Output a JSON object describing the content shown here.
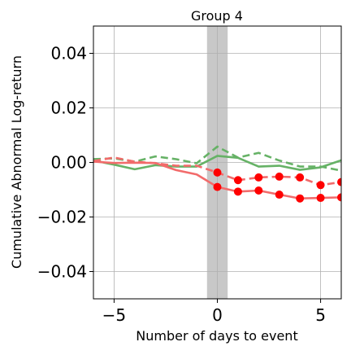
{
  "chart_data": {
    "type": "line",
    "title": "Group 4",
    "xlabel": "Number of days to event",
    "ylabel": "Cumulative Abnormal Log-return",
    "xlim": [
      -6,
      6
    ],
    "ylim": [
      -0.05,
      0.05
    ],
    "x_ticks": [
      -5,
      0,
      5
    ],
    "x_tick_labels": [
      "−5",
      "0",
      "5"
    ],
    "y_ticks": [
      -0.04,
      -0.02,
      0.0,
      0.02,
      0.04
    ],
    "y_tick_labels": [
      "−0.04",
      "−0.02",
      "0.00",
      "0.02",
      "0.04"
    ],
    "grid": true,
    "event_band": {
      "x_from": -0.5,
      "x_to": 0.5,
      "color": "#c8c8c8"
    },
    "series": [
      {
        "color": "#66b266",
        "style": "solid",
        "x": [
          -6,
          -5,
          -4,
          -3,
          -2,
          -1,
          0,
          1,
          2,
          3,
          4,
          5,
          6
        ],
        "y": [
          0.0007,
          -0.0008,
          -0.0025,
          -0.001,
          -0.0015,
          -0.0015,
          0.0024,
          0.0017,
          -0.0015,
          -0.0012,
          -0.0027,
          -0.0018,
          0.0008
        ]
      },
      {
        "color": "#66b266",
        "style": "dashed",
        "x": [
          -6,
          -5,
          -4,
          -3,
          -2,
          -1,
          0,
          1,
          2,
          3,
          4,
          5,
          6
        ],
        "y": [
          0.0012,
          0.0015,
          0.0003,
          0.0022,
          0.0012,
          -0.0003,
          0.0058,
          0.0018,
          0.0035,
          0.0007,
          -0.0015,
          -0.0015,
          -0.003
        ]
      },
      {
        "color": "#f26b6b",
        "style": "solid",
        "markers": "dots",
        "x": [
          -6,
          -5,
          -4,
          -3,
          -2,
          -1,
          0,
          1,
          2,
          3,
          4,
          5,
          6
        ],
        "y": [
          0.0003,
          -0.0002,
          -0.0001,
          -0.0002,
          -0.0028,
          -0.0044,
          -0.009,
          -0.0107,
          -0.0103,
          -0.0118,
          -0.0132,
          -0.013,
          -0.0128
        ],
        "marker_x": [
          0,
          1,
          2,
          3,
          4,
          5,
          6
        ]
      },
      {
        "color": "#f26b6b",
        "style": "dashed",
        "markers": "dots",
        "x": [
          -6,
          -5,
          -4,
          -3,
          -2,
          -1,
          0,
          1,
          2,
          3,
          4,
          5,
          6
        ],
        "y": [
          0.0005,
          0.0018,
          0.0003,
          -0.0003,
          -0.0012,
          -0.0012,
          -0.0037,
          -0.0065,
          -0.0055,
          -0.0052,
          -0.0055,
          -0.0083,
          -0.0072
        ],
        "marker_x": [
          0,
          1,
          2,
          3,
          4,
          5,
          6
        ]
      }
    ]
  }
}
